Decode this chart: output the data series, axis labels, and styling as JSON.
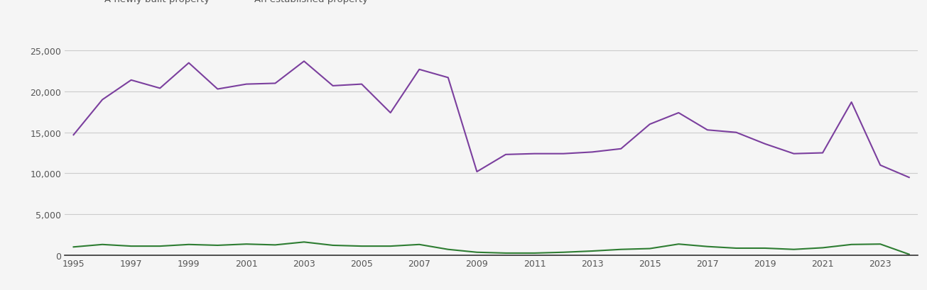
{
  "years": [
    1995,
    1996,
    1997,
    1998,
    1999,
    2000,
    2001,
    2002,
    2003,
    2004,
    2005,
    2006,
    2007,
    2008,
    2009,
    2010,
    2011,
    2012,
    2013,
    2014,
    2015,
    2016,
    2017,
    2018,
    2019,
    2020,
    2021,
    2022,
    2023,
    2024
  ],
  "established": [
    14700,
    19000,
    21400,
    20400,
    23500,
    20300,
    20900,
    21000,
    23700,
    20700,
    20900,
    17400,
    22700,
    21700,
    10200,
    12300,
    12400,
    12400,
    12600,
    13000,
    16000,
    17400,
    15300,
    15000,
    13600,
    12400,
    12500,
    18700,
    11000,
    9500
  ],
  "new_build": [
    1000,
    1300,
    1100,
    1100,
    1300,
    1200,
    1350,
    1250,
    1600,
    1200,
    1100,
    1100,
    1300,
    700,
    350,
    250,
    250,
    350,
    500,
    700,
    800,
    1350,
    1050,
    850,
    850,
    700,
    900,
    1300,
    1350,
    100
  ],
  "established_color": "#7b3f9e",
  "new_build_color": "#2e7d32",
  "ylim": [
    0,
    27000
  ],
  "yticks": [
    0,
    5000,
    10000,
    15000,
    20000,
    25000
  ],
  "background_color": "#f5f5f5",
  "plot_bg_color": "#f5f5f5",
  "grid_color": "#cccccc",
  "tick_label_color": "#555555",
  "bottom_line_color": "#333333"
}
